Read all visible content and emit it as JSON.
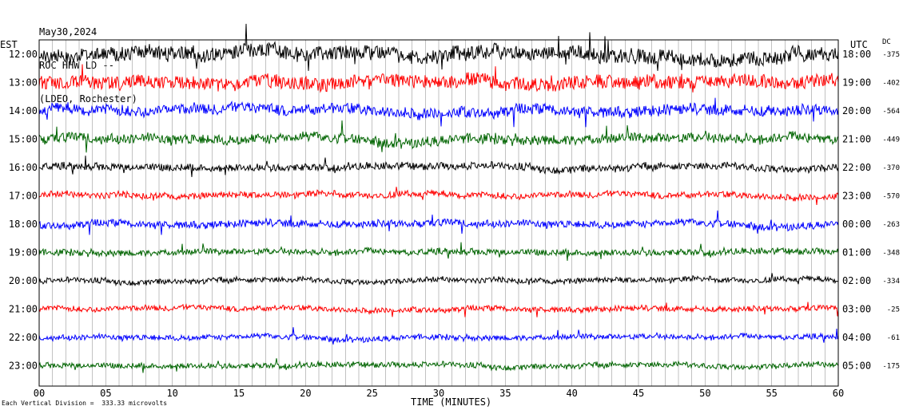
{
  "header": {
    "date": "May30,2024",
    "station": "ROC HHW LD --",
    "location": "(LDEO, Rochester)"
  },
  "left_tz": "EST",
  "right_tz": "UTC",
  "dc_header": "DC",
  "footer": "Each Vertical Division =  333.33 microvolts",
  "chart_data": {
    "type": "line",
    "xlabel": "TIME (MINUTES)",
    "xlim": [
      0,
      60
    ],
    "x_ticks": [
      "00",
      "05",
      "10",
      "15",
      "20",
      "25",
      "30",
      "35",
      "40",
      "45",
      "50",
      "55",
      "60"
    ],
    "trace_colors": [
      "#000000",
      "#ff0000",
      "#0000ff",
      "#006400"
    ],
    "rows": [
      {
        "est": "12:00",
        "utc": "18:00",
        "dc": "-375",
        "amplitude": 1.6
      },
      {
        "est": "13:00",
        "utc": "19:00",
        "dc": "-402",
        "amplitude": 1.5
      },
      {
        "est": "14:00",
        "utc": "20:00",
        "dc": "-564",
        "amplitude": 1.2
      },
      {
        "est": "15:00",
        "utc": "21:00",
        "dc": "-449",
        "amplitude": 1.1
      },
      {
        "est": "16:00",
        "utc": "22:00",
        "dc": "-370",
        "amplitude": 0.8
      },
      {
        "est": "17:00",
        "utc": "23:00",
        "dc": "-570",
        "amplitude": 0.7
      },
      {
        "est": "18:00",
        "utc": "00:00",
        "dc": "-263",
        "amplitude": 0.8
      },
      {
        "est": "19:00",
        "utc": "01:00",
        "dc": "-348",
        "amplitude": 0.7
      },
      {
        "est": "20:00",
        "utc": "02:00",
        "dc": "-334",
        "amplitude": 0.6
      },
      {
        "est": "21:00",
        "utc": "03:00",
        "dc": "-25",
        "amplitude": 0.6
      },
      {
        "est": "22:00",
        "utc": "04:00",
        "dc": "-61",
        "amplitude": 0.6
      },
      {
        "est": "23:00",
        "utc": "05:00",
        "dc": "-175",
        "amplitude": 0.6
      }
    ]
  }
}
